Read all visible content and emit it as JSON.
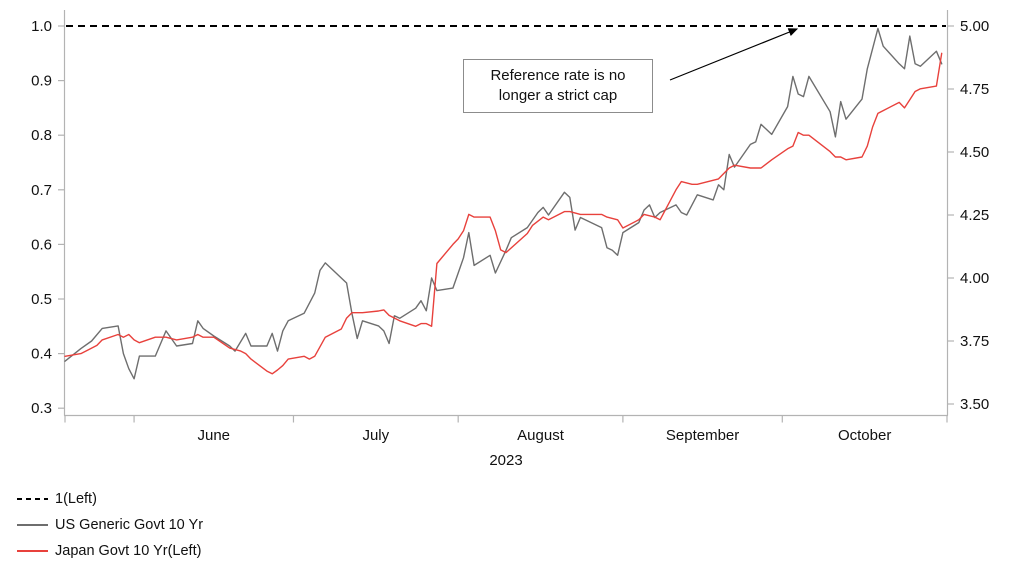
{
  "chart_data": {
    "type": "line",
    "title": "",
    "x_axis": {
      "year_label": "2023",
      "month_labels": [
        "June",
        "July",
        "August",
        "September",
        "October"
      ],
      "month_start_days": [
        13,
        43,
        74,
        105,
        135,
        166
      ],
      "x_domain_days": [
        0,
        166
      ],
      "start_date": "2023-05-19",
      "end_date": "2023-10-31"
    },
    "left_axis": {
      "range": [
        0.3,
        1.0
      ],
      "tick_step": 0.1,
      "tick_labels": [
        "1.0",
        "0.9",
        "0.8",
        "0.7",
        "0.6",
        "0.5",
        "0.4",
        "0.3"
      ]
    },
    "right_axis": {
      "range": [
        3.5,
        5.0
      ],
      "tick_step": 0.25,
      "tick_labels": [
        "5.00",
        "4.75",
        "4.50",
        "4.25",
        "4.00",
        "3.75",
        "3.50"
      ]
    },
    "reference_line": {
      "label": "1(Left)",
      "value": 1.0,
      "axis": "left",
      "style": "dashed",
      "color": "#000000"
    },
    "annotation": {
      "line1": "Reference rate is no",
      "line2": "longer a strict cap",
      "arrow_points_to": "dashed reference line at 1.0 / 5.00"
    },
    "series": [
      {
        "name": "US Generic Govt 10 Yr",
        "axis": "right",
        "color": "#6e6e6e",
        "points": [
          [
            0,
            3.67
          ],
          [
            3,
            3.72
          ],
          [
            5,
            3.75
          ],
          [
            7,
            3.8
          ],
          [
            10,
            3.81
          ],
          [
            11,
            3.7
          ],
          [
            12,
            3.64
          ],
          [
            13,
            3.6
          ],
          [
            14,
            3.69
          ],
          [
            17,
            3.69
          ],
          [
            19,
            3.79
          ],
          [
            21,
            3.73
          ],
          [
            24,
            3.74
          ],
          [
            25,
            3.83
          ],
          [
            26,
            3.8
          ],
          [
            28,
            3.77
          ],
          [
            31,
            3.73
          ],
          [
            32,
            3.71
          ],
          [
            34,
            3.78
          ],
          [
            35,
            3.73
          ],
          [
            38,
            3.73
          ],
          [
            39,
            3.78
          ],
          [
            40,
            3.71
          ],
          [
            41,
            3.79
          ],
          [
            42,
            3.83
          ],
          [
            45,
            3.86
          ],
          [
            47,
            3.94
          ],
          [
            48,
            4.03
          ],
          [
            49,
            4.06
          ],
          [
            52,
            4.0
          ],
          [
            53,
            3.98
          ],
          [
            54,
            3.86
          ],
          [
            55,
            3.76
          ],
          [
            56,
            3.83
          ],
          [
            59,
            3.81
          ],
          [
            60,
            3.79
          ],
          [
            61,
            3.74
          ],
          [
            62,
            3.85
          ],
          [
            63,
            3.84
          ],
          [
            66,
            3.88
          ],
          [
            67,
            3.91
          ],
          [
            68,
            3.87
          ],
          [
            69,
            4.0
          ],
          [
            70,
            3.95
          ],
          [
            73,
            3.96
          ],
          [
            74,
            4.02
          ],
          [
            75,
            4.08
          ],
          [
            76,
            4.18
          ],
          [
            77,
            4.05
          ],
          [
            80,
            4.09
          ],
          [
            81,
            4.02
          ],
          [
            83,
            4.11
          ],
          [
            84,
            4.16
          ],
          [
            87,
            4.2
          ],
          [
            89,
            4.26
          ],
          [
            90,
            4.28
          ],
          [
            91,
            4.25
          ],
          [
            94,
            4.34
          ],
          [
            95,
            4.32
          ],
          [
            96,
            4.19
          ],
          [
            97,
            4.24
          ],
          [
            98,
            4.23
          ],
          [
            101,
            4.2
          ],
          [
            102,
            4.12
          ],
          [
            103,
            4.11
          ],
          [
            104,
            4.09
          ],
          [
            105,
            4.18
          ],
          [
            108,
            4.22
          ],
          [
            109,
            4.27
          ],
          [
            110,
            4.29
          ],
          [
            111,
            4.24
          ],
          [
            112,
            4.26
          ],
          [
            115,
            4.29
          ],
          [
            116,
            4.26
          ],
          [
            117,
            4.25
          ],
          [
            118,
            4.29
          ],
          [
            119,
            4.33
          ],
          [
            122,
            4.31
          ],
          [
            123,
            4.37
          ],
          [
            124,
            4.35
          ],
          [
            125,
            4.49
          ],
          [
            126,
            4.44
          ],
          [
            129,
            4.53
          ],
          [
            130,
            4.54
          ],
          [
            131,
            4.61
          ],
          [
            132,
            4.59
          ],
          [
            133,
            4.57
          ],
          [
            136,
            4.68
          ],
          [
            137,
            4.8
          ],
          [
            138,
            4.73
          ],
          [
            139,
            4.72
          ],
          [
            140,
            4.8
          ],
          [
            144,
            4.66
          ],
          [
            145,
            4.56
          ],
          [
            146,
            4.7
          ],
          [
            147,
            4.63
          ],
          [
            150,
            4.71
          ],
          [
            151,
            4.83
          ],
          [
            152,
            4.91
          ],
          [
            153,
            4.99
          ],
          [
            154,
            4.92
          ],
          [
            157,
            4.85
          ],
          [
            158,
            4.83
          ],
          [
            159,
            4.96
          ],
          [
            160,
            4.85
          ],
          [
            161,
            4.84
          ],
          [
            164,
            4.9
          ],
          [
            165,
            4.85
          ]
        ]
      },
      {
        "name": "Japan Govt 10 Yr(Left)",
        "axis": "left",
        "color": "#e8413c",
        "points": [
          [
            0,
            0.395
          ],
          [
            3,
            0.4
          ],
          [
            4,
            0.405
          ],
          [
            6,
            0.415
          ],
          [
            7,
            0.425
          ],
          [
            10,
            0.435
          ],
          [
            11,
            0.43
          ],
          [
            12,
            0.435
          ],
          [
            13,
            0.425
          ],
          [
            14,
            0.42
          ],
          [
            17,
            0.43
          ],
          [
            19,
            0.43
          ],
          [
            21,
            0.425
          ],
          [
            24,
            0.43
          ],
          [
            25,
            0.435
          ],
          [
            26,
            0.43
          ],
          [
            28,
            0.43
          ],
          [
            31,
            0.41
          ],
          [
            33,
            0.405
          ],
          [
            34,
            0.4
          ],
          [
            35,
            0.39
          ],
          [
            38,
            0.368
          ],
          [
            39,
            0.363
          ],
          [
            40,
            0.37
          ],
          [
            41,
            0.378
          ],
          [
            42,
            0.39
          ],
          [
            45,
            0.395
          ],
          [
            46,
            0.39
          ],
          [
            47,
            0.395
          ],
          [
            49,
            0.43
          ],
          [
            52,
            0.445
          ],
          [
            53,
            0.465
          ],
          [
            54,
            0.475
          ],
          [
            56,
            0.475
          ],
          [
            59,
            0.478
          ],
          [
            60,
            0.48
          ],
          [
            61,
            0.47
          ],
          [
            63,
            0.46
          ],
          [
            66,
            0.45
          ],
          [
            67,
            0.455
          ],
          [
            68,
            0.455
          ],
          [
            69,
            0.45
          ],
          [
            70,
            0.565
          ],
          [
            73,
            0.6
          ],
          [
            74,
            0.61
          ],
          [
            75,
            0.625
          ],
          [
            76,
            0.655
          ],
          [
            77,
            0.65
          ],
          [
            80,
            0.65
          ],
          [
            81,
            0.625
          ],
          [
            82,
            0.59
          ],
          [
            83,
            0.585
          ],
          [
            87,
            0.62
          ],
          [
            88,
            0.635
          ],
          [
            90,
            0.65
          ],
          [
            91,
            0.645
          ],
          [
            94,
            0.66
          ],
          [
            95,
            0.66
          ],
          [
            97,
            0.655
          ],
          [
            101,
            0.655
          ],
          [
            102,
            0.65
          ],
          [
            104,
            0.645
          ],
          [
            105,
            0.63
          ],
          [
            108,
            0.645
          ],
          [
            109,
            0.655
          ],
          [
            111,
            0.65
          ],
          [
            112,
            0.645
          ],
          [
            115,
            0.7
          ],
          [
            116,
            0.715
          ],
          [
            118,
            0.71
          ],
          [
            119,
            0.71
          ],
          [
            123,
            0.72
          ],
          [
            125,
            0.74
          ],
          [
            126,
            0.745
          ],
          [
            129,
            0.74
          ],
          [
            131,
            0.74
          ],
          [
            133,
            0.755
          ],
          [
            136,
            0.775
          ],
          [
            137,
            0.78
          ],
          [
            138,
            0.805
          ],
          [
            139,
            0.8
          ],
          [
            140,
            0.8
          ],
          [
            144,
            0.77
          ],
          [
            145,
            0.76
          ],
          [
            146,
            0.76
          ],
          [
            147,
            0.755
          ],
          [
            150,
            0.76
          ],
          [
            151,
            0.78
          ],
          [
            152,
            0.815
          ],
          [
            153,
            0.84
          ],
          [
            154,
            0.845
          ],
          [
            157,
            0.86
          ],
          [
            158,
            0.85
          ],
          [
            159,
            0.865
          ],
          [
            160,
            0.88
          ],
          [
            161,
            0.885
          ],
          [
            164,
            0.89
          ],
          [
            165,
            0.95
          ]
        ]
      }
    ],
    "legend_position": "bottom-left",
    "grid": "off",
    "colors": {
      "axis": "#b3b3b3",
      "text": "#111111",
      "reference": "#000000",
      "us_line": "#6e6e6e",
      "japan_line": "#e8413c"
    }
  },
  "legend": {
    "items": [
      {
        "label": "1(Left)",
        "style": "dashed",
        "color": "#000000"
      },
      {
        "label": "US Generic Govt 10 Yr",
        "style": "solid",
        "color": "#6e6e6e"
      },
      {
        "label": "Japan Govt 10 Yr(Left)",
        "style": "solid",
        "color": "#e8413c"
      }
    ]
  }
}
